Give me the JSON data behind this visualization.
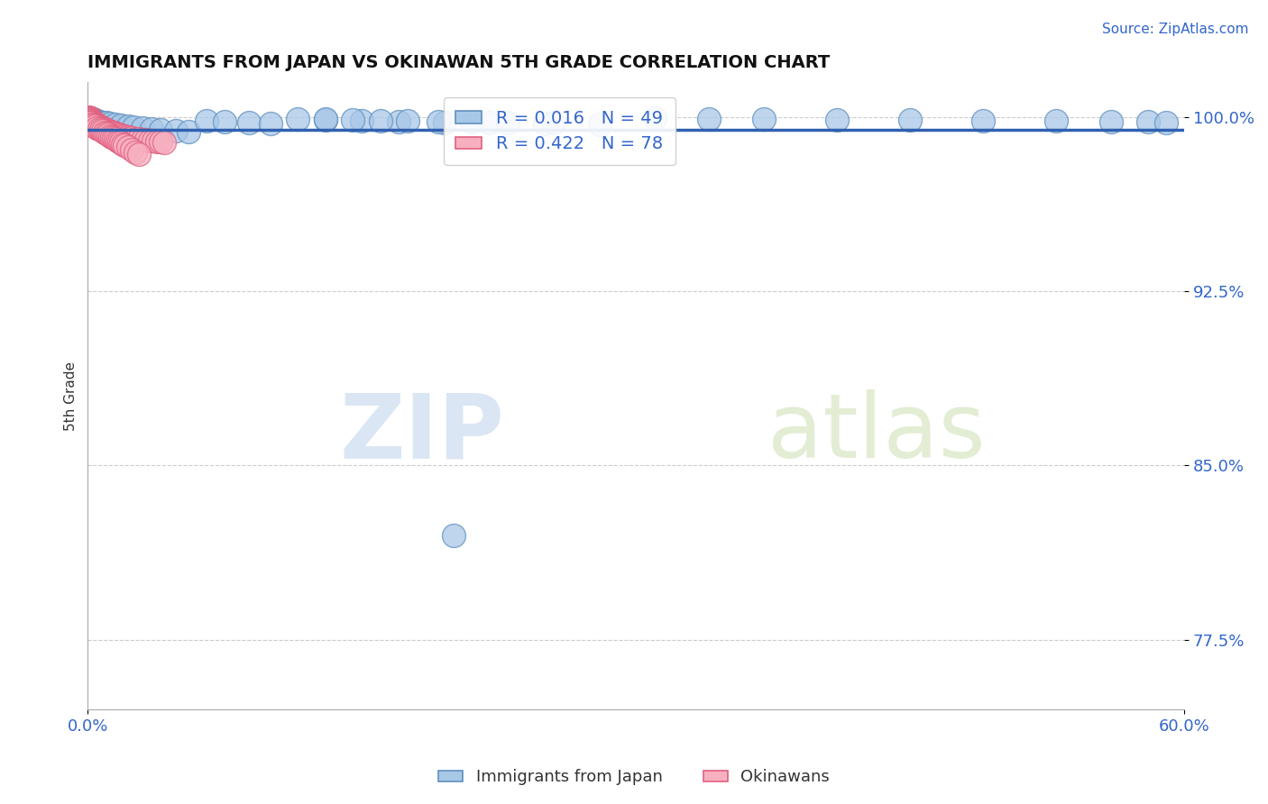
{
  "title": "IMMIGRANTS FROM JAPAN VS OKINAWAN 5TH GRADE CORRELATION CHART",
  "source_text": "Source: ZipAtlas.com",
  "ylabel": "5th Grade",
  "watermark_zip": "ZIP",
  "watermark_atlas": "atlas",
  "xlim": [
    0.0,
    0.6
  ],
  "ylim": [
    0.745,
    1.015
  ],
  "xtick_labels": [
    "0.0%",
    "60.0%"
  ],
  "xtick_positions": [
    0.0,
    0.6
  ],
  "ytick_labels": [
    "77.5%",
    "85.0%",
    "92.5%",
    "100.0%"
  ],
  "ytick_positions": [
    0.775,
    0.85,
    0.925,
    1.0
  ],
  "blue_color": "#a8c8e8",
  "pink_color": "#f8b0c0",
  "blue_edge": "#6090c0",
  "pink_edge": "#e06080",
  "line_color": "#3060b0",
  "legend_label_blue": "Immigrants from Japan",
  "legend_label_pink": "Okinawans",
  "legend_R_blue": "R = 0.016",
  "legend_N_blue": "N = 49",
  "legend_R_pink": "R = 0.422",
  "legend_N_pink": "N = 78",
  "blue_scatter_x": [
    0.001,
    0.002,
    0.003,
    0.004,
    0.005,
    0.006,
    0.008,
    0.01,
    0.012,
    0.015,
    0.018,
    0.022,
    0.025,
    0.03,
    0.035,
    0.04,
    0.048,
    0.055,
    0.065,
    0.075,
    0.088,
    0.1,
    0.115,
    0.13,
    0.15,
    0.17,
    0.195,
    0.22,
    0.25,
    0.28,
    0.31,
    0.34,
    0.37,
    0.41,
    0.45,
    0.49,
    0.53,
    0.56,
    0.58,
    0.59,
    0.13,
    0.145,
    0.16,
    0.175,
    0.192,
    0.21,
    0.23,
    0.255,
    0.2
  ],
  "blue_scatter_y": [
    0.9995,
    0.9993,
    0.999,
    0.9988,
    0.9985,
    0.9982,
    0.9978,
    0.9975,
    0.9972,
    0.9968,
    0.9964,
    0.996,
    0.9957,
    0.9953,
    0.995,
    0.9946,
    0.9942,
    0.9938,
    0.9983,
    0.998,
    0.9977,
    0.9974,
    0.999,
    0.9987,
    0.9984,
    0.9981,
    0.9978,
    0.9975,
    0.9972,
    0.9969,
    0.9995,
    0.9993,
    0.9991,
    0.9989,
    0.9987,
    0.9985,
    0.9983,
    0.9981,
    0.9979,
    0.9977,
    0.999,
    0.9988,
    0.9986,
    0.9984,
    0.9982,
    0.998,
    0.9978,
    0.9976,
    0.82
  ],
  "pink_scatter_x": [
    0.001,
    0.001,
    0.001,
    0.001,
    0.002,
    0.002,
    0.002,
    0.002,
    0.003,
    0.003,
    0.003,
    0.003,
    0.004,
    0.004,
    0.004,
    0.005,
    0.005,
    0.005,
    0.006,
    0.006,
    0.006,
    0.007,
    0.007,
    0.008,
    0.008,
    0.009,
    0.009,
    0.01,
    0.01,
    0.011,
    0.012,
    0.012,
    0.013,
    0.014,
    0.015,
    0.015,
    0.016,
    0.017,
    0.018,
    0.019,
    0.02,
    0.021,
    0.022,
    0.023,
    0.024,
    0.026,
    0.028,
    0.03,
    0.032,
    0.034,
    0.036,
    0.038,
    0.04,
    0.042,
    0.001,
    0.002,
    0.003,
    0.004,
    0.005,
    0.006,
    0.007,
    0.008,
    0.009,
    0.01,
    0.011,
    0.012,
    0.013,
    0.014,
    0.015,
    0.016,
    0.017,
    0.018,
    0.019,
    0.02,
    0.022,
    0.024,
    0.026,
    0.028
  ],
  "pink_scatter_y": [
    0.9998,
    0.9996,
    0.9994,
    0.9992,
    0.999,
    0.9988,
    0.9986,
    0.9984,
    0.9982,
    0.998,
    0.9978,
    0.9976,
    0.9974,
    0.9972,
    0.997,
    0.9968,
    0.9966,
    0.9964,
    0.9962,
    0.996,
    0.9958,
    0.9956,
    0.9954,
    0.9952,
    0.995,
    0.9948,
    0.9946,
    0.9944,
    0.9942,
    0.994,
    0.9938,
    0.9936,
    0.9934,
    0.9932,
    0.993,
    0.9928,
    0.9926,
    0.9924,
    0.9922,
    0.992,
    0.9918,
    0.9916,
    0.9914,
    0.9912,
    0.991,
    0.9908,
    0.9906,
    0.9904,
    0.9902,
    0.99,
    0.9898,
    0.9896,
    0.9894,
    0.9892,
    0.9975,
    0.997,
    0.9965,
    0.996,
    0.9955,
    0.995,
    0.9945,
    0.994,
    0.9935,
    0.993,
    0.9925,
    0.992,
    0.9915,
    0.991,
    0.9905,
    0.99,
    0.9895,
    0.989,
    0.9885,
    0.988,
    0.987,
    0.986,
    0.985,
    0.984
  ],
  "blue_line_y": 0.9945,
  "pink_line_y": 0.9978,
  "background_color": "#ffffff",
  "grid_color": "#cccccc"
}
